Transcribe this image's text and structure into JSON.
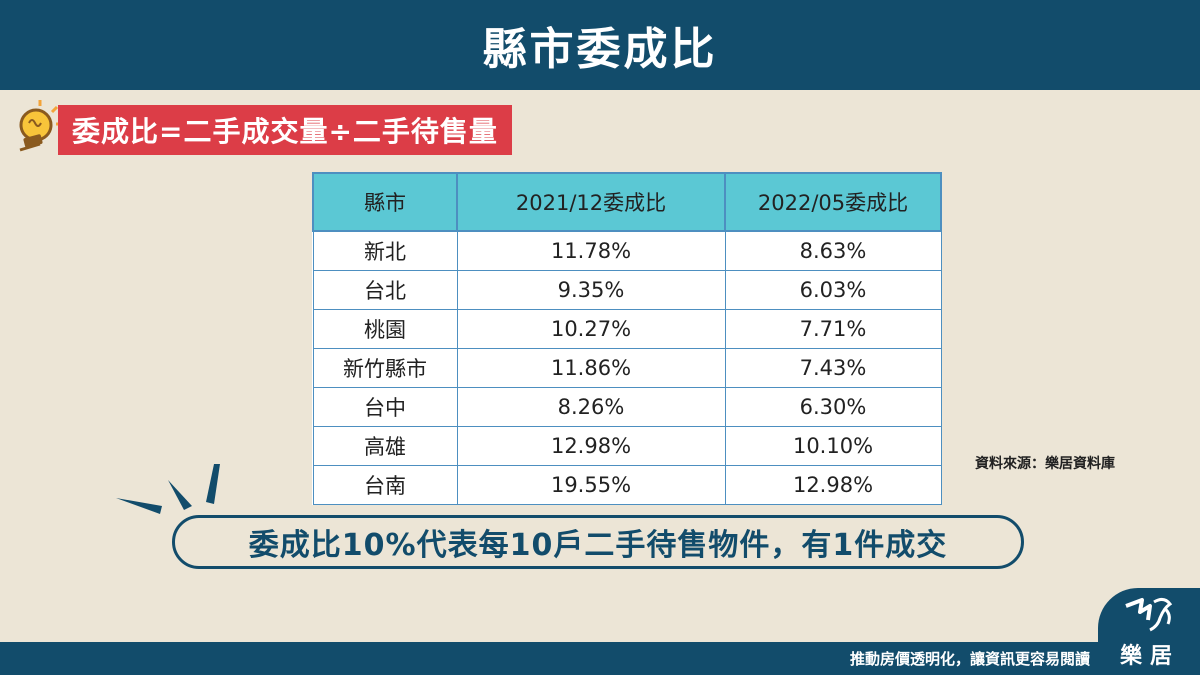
{
  "header": {
    "title": "縣市委成比"
  },
  "formula": {
    "text": "委成比=二手成交量÷二手待售量"
  },
  "table": {
    "headers": [
      "縣市",
      "2021/12委成比",
      "2022/05委成比"
    ],
    "rows": [
      [
        "新北",
        "11.78%",
        "8.63%"
      ],
      [
        "台北",
        "9.35%",
        "6.03%"
      ],
      [
        "桃園",
        "10.27%",
        "7.71%"
      ],
      [
        "新竹縣市",
        "11.86%",
        "7.43%"
      ],
      [
        "台中",
        "8.26%",
        "6.30%"
      ],
      [
        "高雄",
        "12.98%",
        "10.10%"
      ],
      [
        "台南",
        "19.55%",
        "12.98%"
      ]
    ]
  },
  "source": "資料來源：樂居資料庫",
  "note": "委成比10%代表每10戶二手待售物件，有1件成交",
  "footer": {
    "slogan": "推動房價透明化，讓資訊更容易閱讀",
    "logo_text": "樂居"
  },
  "colors": {
    "navy": "#124c6b",
    "red": "#dc3d47",
    "teal": "#5bc8d4",
    "background": "#ece5d6"
  },
  "icons": [
    "lightbulb-icon",
    "burst-lines-icon",
    "leju-logo-icon"
  ]
}
